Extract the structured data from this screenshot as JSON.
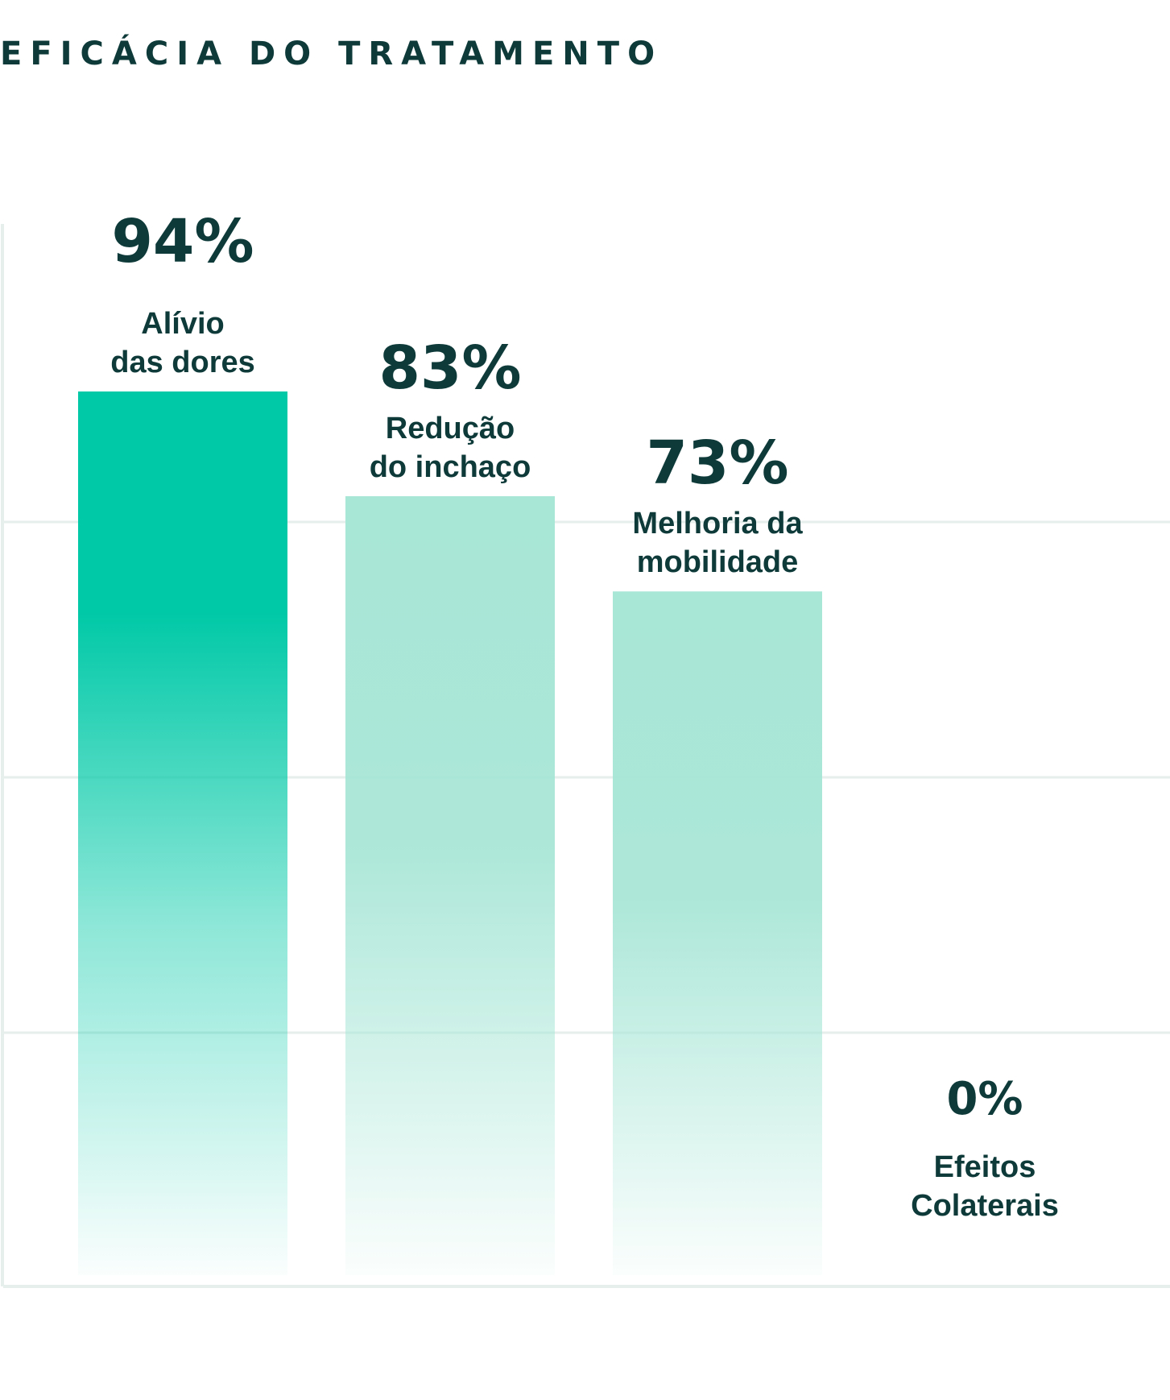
{
  "chart_data": {
    "type": "bar",
    "title": "EFICÁCIA DO TRATAMENTO",
    "categories": [
      "Alívio\ndas dores",
      "Redução\ndo inchaço",
      "Melhoria da\nmobilidade",
      "Efeitos\nColaterais"
    ],
    "values": [
      94,
      83,
      73,
      0
    ],
    "value_labels": [
      "94%",
      "83%",
      "73%",
      "0%"
    ],
    "ylim": [
      0,
      100
    ],
    "grid": true,
    "colors": {
      "highlight_bar": "#00c9a7",
      "bar": "#a8e6d6",
      "grid": "#e6efec",
      "text": "#0e3b3a"
    }
  }
}
